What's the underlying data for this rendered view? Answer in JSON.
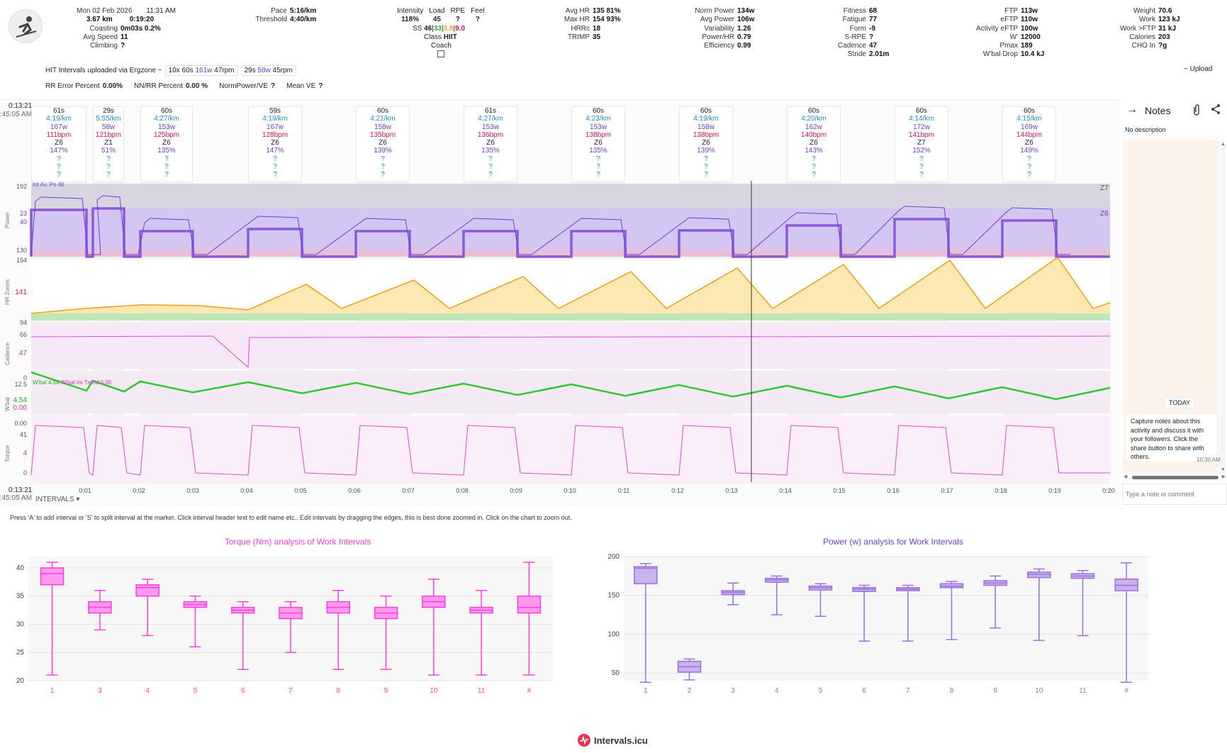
{
  "header": {
    "date": "Mon 02 Feb 2026",
    "time": "11:31 AM",
    "distance": "3.67 km",
    "duration": "0:19:20",
    "coasting_label": "Coasting",
    "coasting_value": "0m03s 0.2%",
    "avg_speed_label": "Avg Speed",
    "avg_speed_value": "11",
    "climbing_label": "Climbing",
    "climbing_value": "?",
    "pace_label": "Pace",
    "pace_value": "5:16/km",
    "threshold_label": "Threshold",
    "threshold_value": "4:40/km",
    "intensity_label": "Intensity",
    "intensity_value": "118%",
    "load_label": "Load",
    "load_value": "45",
    "rpe_label": "RPE",
    "rpe_value": "?",
    "feel_label": "Feel",
    "feel_value": "?",
    "ss_label": "SS",
    "ss_v1": "46",
    "ss_v2": "33",
    "ss_v3": "3.9",
    "ss_v4": "9.0",
    "class_label": "Class",
    "class_value": "HIIT",
    "coach_label": "Coach",
    "col4": [
      [
        "Avg HR",
        "135 81%"
      ],
      [
        "Max HR",
        "154 93%"
      ],
      [
        "HRRc",
        "18"
      ],
      [
        "TRIMP",
        "35"
      ]
    ],
    "col5": [
      [
        "Norm Power",
        "134w"
      ],
      [
        "Avg Power",
        "106w"
      ],
      [
        "Variability",
        "1.26"
      ],
      [
        "Power/HR",
        "0.79"
      ],
      [
        "Efficiency",
        "0.99"
      ]
    ],
    "col6": [
      [
        "Fitness",
        "68"
      ],
      [
        "Fatigue",
        "77"
      ],
      [
        "Form",
        "-9"
      ],
      [
        "S-RPE",
        "?"
      ],
      [
        "Cadence",
        "47"
      ],
      [
        "Stride",
        "2.01m"
      ]
    ],
    "col7": [
      [
        "FTP",
        "113w"
      ],
      [
        "eFTP",
        "110w"
      ],
      [
        "Activity eFTP",
        "100w"
      ],
      [
        "W'",
        "12000"
      ],
      [
        "Pmax",
        "189"
      ],
      [
        "W'bal Drop",
        "10.4 kJ"
      ]
    ],
    "col8": [
      [
        "Weight",
        "70.6"
      ],
      [
        "Work",
        "123 kJ"
      ],
      [
        "Work >FTP",
        "31 kJ"
      ],
      [
        "Calories",
        "203"
      ],
      [
        "CHO In",
        "?g"
      ]
    ]
  },
  "hit": {
    "prefix": "HIT Intervals uploaded via Ergzone ~",
    "seg1_a": "10x",
    "seg1_b": "60s",
    "seg1_c": "161w",
    "seg1_d": "47rpm",
    "seg2_a": "29s",
    "seg2_b": "58w",
    "seg2_c": "45rpm",
    "upload": "~ Upload"
  },
  "rr": [
    [
      "RR Error Percent",
      "0.00%"
    ],
    [
      "NN/RR Percent",
      "0.00 %"
    ],
    [
      "NormPower/VE",
      "?"
    ],
    [
      "Mean VE",
      "?"
    ]
  ],
  "chart_head": {
    "elapsed": "0:13:21",
    "clock": ":45:05 AM",
    "elapsed_bottom": "0:13:21",
    "clock_bottom": ":45:05 AM",
    "intervals_dropdown": "INTERVALS"
  },
  "intervals": [
    {
      "d": "61s",
      "p": "4:19/km",
      "w": "167w",
      "h": "111bpm",
      "z": "Z6",
      "pct": "147%"
    },
    {
      "d": "29s",
      "p": "5:55/km",
      "w": "58w",
      "h": "121bpm",
      "z": "Z1",
      "pct": "51%"
    },
    {
      "d": "60s",
      "p": "4:27/km",
      "w": "153w",
      "h": "125bpm",
      "z": "Z6",
      "pct": "135%"
    },
    {
      "d": "59s",
      "p": "4:19/km",
      "w": "167w",
      "h": "128bpm",
      "z": "Z6",
      "pct": "147%"
    },
    {
      "d": "60s",
      "p": "4:21/km",
      "w": "158w",
      "h": "135bpm",
      "z": "Z6",
      "pct": "139%"
    },
    {
      "d": "61s",
      "p": "4:27/km",
      "w": "153w",
      "h": "136bpm",
      "z": "Z6",
      "pct": "135%"
    },
    {
      "d": "60s",
      "p": "4:23/km",
      "w": "153w",
      "h": "138bpm",
      "z": "Z6",
      "pct": "135%"
    },
    {
      "d": "60s",
      "p": "4:19/km",
      "w": "158w",
      "h": "138bpm",
      "z": "Z6",
      "pct": "139%"
    },
    {
      "d": "60s",
      "p": "4:20/km",
      "w": "162w",
      "h": "140bpm",
      "z": "Z6",
      "pct": "143%"
    },
    {
      "d": "60s",
      "p": "4:14/km",
      "w": "172w",
      "h": "141bpm",
      "z": "Z7",
      "pct": "152%"
    },
    {
      "d": "60s",
      "p": "4:15/km",
      "w": "169w",
      "h": "144bpm",
      "z": "Z6",
      "pct": "149%"
    }
  ],
  "axes": {
    "power": {
      "label": "Power",
      "ticks": [
        "192",
        "23",
        "40",
        "130"
      ],
      "zone_top": "Z7",
      "zone_mid": "Z6",
      "legend": "Int Av. Po 46"
    },
    "hr": {
      "label": "HR Zones",
      "ticks": [
        "154",
        "141",
        "94"
      ]
    },
    "cadence": {
      "label": "Cadence",
      "ticks": [
        "66",
        "47",
        "0"
      ]
    },
    "wbal": {
      "label": "W'bal",
      "ticks": [
        "12.5",
        "4.54",
        "0.00",
        "0.00"
      ],
      "legend1": "W'bal 4.54",
      "legend2": "W'bal Im Trend 0.00"
    },
    "torque": {
      "label": "Torque",
      "ticks": [
        "41",
        "4",
        "0"
      ]
    },
    "x_ticks": [
      "0:01",
      "0:02",
      "0:03",
      "0:04",
      "0:05",
      "0:06",
      "0:07",
      "0:08",
      "0:09",
      "0:10",
      "0:11",
      "0:12",
      "0:13",
      "0:14",
      "0:15",
      "0:16",
      "0:17",
      "0:18",
      "0:19",
      "0:20"
    ]
  },
  "notes": {
    "title": "Notes",
    "no_description": "No description",
    "today": "TODAY",
    "bubble": "Capture notes about this activity and discuss it with your followers. Click the share button to share with others.",
    "bubble_time": "10:30 AM",
    "placeholder": "Type a note or comment"
  },
  "help_text": "Press 'A' to add interval or 'S' to split interval at the marker. Click interval header text to edit name etc.. Edit intervals by dragging the edges, this is best done zoomed in. Click on the chart to zoom out.",
  "chart_data": [
    {
      "type": "box",
      "title": "Torque (Nm) analysis of Work Intervals",
      "categories": [
        "1",
        "3",
        "4",
        "5",
        "6",
        "7",
        "8",
        "9",
        "10",
        "11",
        "#"
      ],
      "ylim": [
        20,
        42
      ],
      "yticks": [
        "40",
        "35",
        "30",
        "25",
        "20"
      ],
      "boxes": [
        {
          "min": 21,
          "q1": 37,
          "med": 39,
          "q3": 40,
          "max": 41
        },
        {
          "min": 29,
          "q1": 32,
          "med": 33,
          "q3": 34,
          "max": 36
        },
        {
          "min": 28,
          "q1": 35,
          "med": 36.5,
          "q3": 37,
          "max": 38
        },
        {
          "min": 26,
          "q1": 33,
          "med": 33.5,
          "q3": 34,
          "max": 35
        },
        {
          "min": 22,
          "q1": 32,
          "med": 32.5,
          "q3": 33,
          "max": 34
        },
        {
          "min": 25,
          "q1": 31,
          "med": 32,
          "q3": 33,
          "max": 34
        },
        {
          "min": 22,
          "q1": 32,
          "med": 33,
          "q3": 34,
          "max": 36
        },
        {
          "min": 22,
          "q1": 31,
          "med": 32,
          "q3": 33,
          "max": 35
        },
        {
          "min": 21,
          "q1": 33,
          "med": 34,
          "q3": 35,
          "max": 38
        },
        {
          "min": 21,
          "q1": 32,
          "med": 32.5,
          "q3": 33,
          "max": 36
        },
        {
          "min": 21,
          "q1": 32,
          "med": 33,
          "q3": 35,
          "max": 41
        }
      ],
      "color": "#ff3ee0"
    },
    {
      "type": "box",
      "title": "Power (w) analysis for Work Intervals",
      "categories": [
        "1",
        "2",
        "3",
        "4",
        "5",
        "6",
        "7",
        "8",
        "9",
        "10",
        "11",
        "#"
      ],
      "ylim": [
        40,
        200
      ],
      "yticks": [
        "200",
        "150",
        "100",
        "50"
      ],
      "boxes": [
        {
          "min": 38,
          "q1": 165,
          "med": 185,
          "q3": 187,
          "max": 191
        },
        {
          "min": 41,
          "q1": 51,
          "med": 58,
          "q3": 65,
          "max": 68
        },
        {
          "min": 138,
          "q1": 151,
          "med": 154,
          "q3": 156,
          "max": 166
        },
        {
          "min": 125,
          "q1": 167,
          "med": 170,
          "q3": 172,
          "max": 175
        },
        {
          "min": 123,
          "q1": 157,
          "med": 160,
          "q3": 162,
          "max": 165
        },
        {
          "min": 91,
          "q1": 155,
          "med": 158,
          "q3": 160,
          "max": 163
        },
        {
          "min": 91,
          "q1": 156,
          "med": 158,
          "q3": 160,
          "max": 163
        },
        {
          "min": 93,
          "q1": 160,
          "med": 162,
          "q3": 165,
          "max": 168
        },
        {
          "min": 108,
          "q1": 163,
          "med": 166,
          "q3": 169,
          "max": 175
        },
        {
          "min": 92,
          "q1": 173,
          "med": 177,
          "q3": 180,
          "max": 184
        },
        {
          "min": 98,
          "q1": 172,
          "med": 175,
          "q3": 178,
          "max": 182
        },
        {
          "min": 38,
          "q1": 156,
          "med": 163,
          "q3": 171,
          "max": 192
        }
      ],
      "color": "#9b6fe0"
    }
  ],
  "footer": {
    "brand": "Intervals.icu"
  }
}
